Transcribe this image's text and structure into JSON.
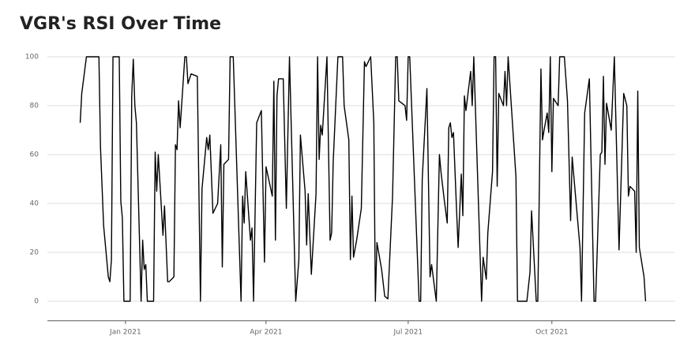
{
  "chart_data": {
    "type": "line",
    "title": "VGR's RSI Over Time",
    "color": "#000000",
    "grid": true,
    "xlim": [
      "2020-11-12",
      "2021-12-19"
    ],
    "ylim": [
      -8,
      105
    ],
    "yticks": [
      0,
      20,
      40,
      60,
      80,
      100
    ],
    "xticks": [
      {
        "value": "2021-01-01",
        "label": "Jan 2021"
      },
      {
        "value": "2021-04-01",
        "label": "Apr 2021"
      },
      {
        "value": "2021-07-01",
        "label": "Jul 2021"
      },
      {
        "value": "2021-10-01",
        "label": "Oct 2021"
      }
    ],
    "x": [
      "2020-12-03",
      "2020-12-04",
      "2020-12-07",
      "2020-12-15",
      "2020-12-16",
      "2020-12-18",
      "2020-12-21",
      "2020-12-22",
      "2020-12-23",
      "2020-12-24",
      "2020-12-28",
      "2020-12-29",
      "2020-12-30",
      "2020-12-31",
      "2021-01-04",
      "2021-01-05",
      "2021-01-06",
      "2021-01-07",
      "2021-01-08",
      "2021-01-11",
      "2021-01-12",
      "2021-01-13",
      "2021-01-14",
      "2021-01-15",
      "2021-01-19",
      "2021-01-20",
      "2021-01-21",
      "2021-01-22",
      "2021-01-25",
      "2021-01-26",
      "2021-01-28",
      "2021-01-29",
      "2021-02-01",
      "2021-02-02",
      "2021-02-03",
      "2021-02-04",
      "2021-02-05",
      "2021-02-08",
      "2021-02-09",
      "2021-02-10",
      "2021-02-12",
      "2021-02-16",
      "2021-02-18",
      "2021-02-19",
      "2021-02-22",
      "2021-02-23",
      "2021-02-24",
      "2021-02-26",
      "2021-03-01",
      "2021-03-03",
      "2021-03-04",
      "2021-03-05",
      "2021-03-08",
      "2021-03-09",
      "2021-03-11",
      "2021-03-16",
      "2021-03-17",
      "2021-03-18",
      "2021-03-19",
      "2021-03-22",
      "2021-03-23",
      "2021-03-24",
      "2021-03-26",
      "2021-03-29",
      "2021-03-31",
      "2021-04-01",
      "2021-04-05",
      "2021-04-06",
      "2021-04-07",
      "2021-04-08",
      "2021-04-09",
      "2021-04-12",
      "2021-04-14",
      "2021-04-16",
      "2021-04-20",
      "2021-04-22",
      "2021-04-23",
      "2021-04-26",
      "2021-04-27",
      "2021-04-28",
      "2021-04-30",
      "2021-05-03",
      "2021-05-04",
      "2021-05-05",
      "2021-05-06",
      "2021-05-07",
      "2021-05-10",
      "2021-05-12",
      "2021-05-13",
      "2021-05-14",
      "2021-05-17",
      "2021-05-20",
      "2021-05-21",
      "2021-05-24",
      "2021-05-25",
      "2021-05-26",
      "2021-05-27",
      "2021-05-29",
      "2021-06-01",
      "2021-06-03",
      "2021-06-04",
      "2021-06-07",
      "2021-06-09",
      "2021-06-10",
      "2021-06-11",
      "2021-06-14",
      "2021-06-16",
      "2021-06-18",
      "2021-06-21",
      "2021-06-23",
      "2021-06-24",
      "2021-06-25",
      "2021-06-29",
      "2021-06-30",
      "2021-07-01",
      "2021-07-02",
      "2021-07-08",
      "2021-07-09",
      "2021-07-10",
      "2021-07-13",
      "2021-07-15",
      "2021-07-16",
      "2021-07-19",
      "2021-07-21",
      "2021-07-22",
      "2021-07-24",
      "2021-07-26",
      "2021-07-27",
      "2021-07-28",
      "2021-07-29",
      "2021-07-30",
      "2021-08-01",
      "2021-08-02",
      "2021-08-04",
      "2021-08-05",
      "2021-08-06",
      "2021-08-07",
      "2021-08-10",
      "2021-08-11",
      "2021-08-12",
      "2021-08-17",
      "2021-08-18",
      "2021-08-20",
      "2021-08-21",
      "2021-08-24",
      "2021-08-25",
      "2021-08-26",
      "2021-08-27",
      "2021-08-28",
      "2021-08-31",
      "2021-09-01",
      "2021-09-02",
      "2021-09-03",
      "2021-09-08",
      "2021-09-09",
      "2021-09-15",
      "2021-09-17",
      "2021-09-18",
      "2021-09-21",
      "2021-09-22",
      "2021-09-24",
      "2021-09-25",
      "2021-09-26",
      "2021-09-28",
      "2021-09-29",
      "2021-09-30",
      "2021-10-01",
      "2021-10-02",
      "2021-10-05",
      "2021-10-06",
      "2021-10-09",
      "2021-10-11",
      "2021-10-13",
      "2021-10-14",
      "2021-10-19",
      "2021-10-20",
      "2021-10-22",
      "2021-10-25",
      "2021-10-28",
      "2021-10-29",
      "2021-11-01",
      "2021-11-02",
      "2021-11-03",
      "2021-11-04",
      "2021-11-05",
      "2021-11-08",
      "2021-11-10",
      "2021-11-13",
      "2021-11-16",
      "2021-11-18",
      "2021-11-19",
      "2021-11-20",
      "2021-11-23",
      "2021-11-24",
      "2021-11-25",
      "2021-11-26",
      "2021-11-29",
      "2021-11-30"
    ],
    "values": [
      73,
      85,
      100,
      100,
      63,
      31,
      10,
      8,
      17,
      100,
      100,
      41,
      34,
      0,
      0,
      84,
      99,
      80,
      73,
      0,
      25,
      13,
      15,
      0,
      0,
      61,
      45,
      60,
      27,
      39,
      8,
      8,
      10,
      64,
      62,
      82,
      71,
      100,
      100,
      89,
      93,
      92,
      0,
      46,
      67,
      62,
      68,
      36,
      40,
      64,
      14,
      56,
      58,
      100,
      100,
      0,
      43,
      32,
      53,
      25,
      30,
      0,
      73,
      78,
      16,
      55,
      43,
      90,
      25,
      84,
      91,
      91,
      38,
      100,
      0,
      17,
      68,
      45,
      23,
      44,
      11,
      44,
      100,
      58,
      72,
      68,
      100,
      25,
      28,
      57,
      100,
      100,
      80,
      66,
      17,
      43,
      18,
      25,
      38,
      98,
      96,
      100,
      73,
      0,
      24,
      13,
      2,
      1,
      43,
      100,
      100,
      82,
      80,
      74,
      100,
      100,
      0,
      0,
      50,
      87,
      10,
      15,
      0,
      60,
      53,
      42,
      32,
      71,
      73,
      67,
      69,
      37,
      22,
      52,
      35,
      84,
      78,
      94,
      80,
      100,
      0,
      18,
      9,
      28,
      53,
      100,
      100,
      47,
      85,
      80,
      94,
      80,
      100,
      51,
      0,
      0,
      12,
      37,
      0,
      0,
      95,
      66,
      70,
      77,
      69,
      100,
      53,
      83,
      80,
      100,
      100,
      82,
      33,
      59,
      22,
      0,
      77,
      91,
      0,
      0,
      60,
      61,
      92,
      56,
      81,
      70,
      100,
      21,
      85,
      80,
      43,
      47,
      45,
      20,
      86,
      22,
      10,
      0
    ]
  }
}
